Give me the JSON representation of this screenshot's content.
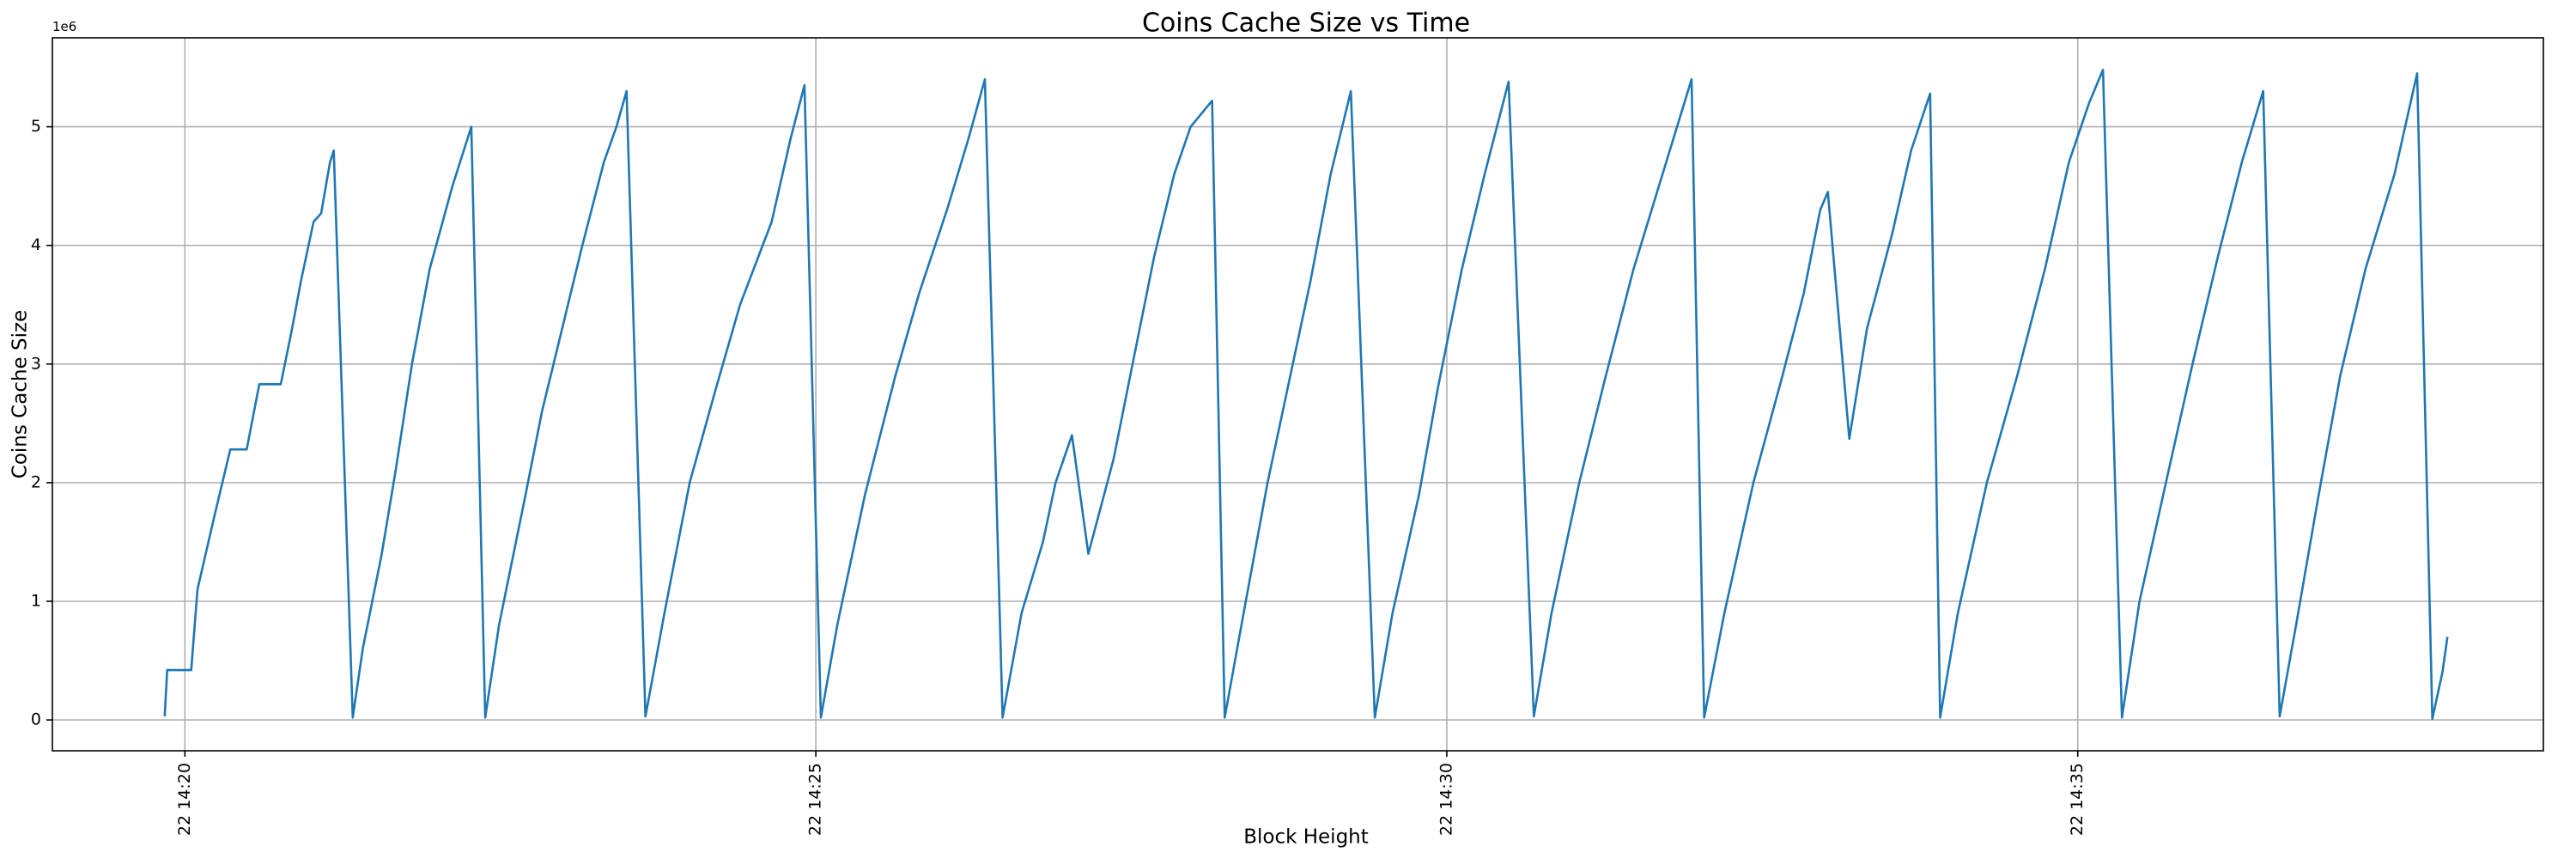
{
  "chart_data": {
    "type": "line",
    "title": "Coins Cache Size vs Time",
    "x_label": "Block Height",
    "y_label": "Coins Cache Size",
    "y_offset_label": "1e6",
    "x": [
      19.84,
      19.86,
      20.05,
      20.1,
      20.23,
      20.36,
      20.49,
      20.59,
      20.76,
      20.85,
      20.92,
      21.02,
      21.08,
      21.15,
      21.18,
      21.33,
      21.41,
      21.56,
      21.67,
      21.8,
      21.94,
      22.12,
      22.27,
      22.38,
      22.49,
      22.7,
      22.83,
      22.99,
      23.15,
      23.32,
      23.42,
      23.5,
      23.65,
      23.8,
      24.0,
      24.21,
      24.4,
      24.65,
      24.8,
      24.91,
      25.04,
      25.17,
      25.39,
      25.63,
      25.82,
      26.04,
      26.21,
      26.34,
      26.48,
      26.63,
      26.8,
      26.9,
      27.03,
      27.16,
      27.36,
      27.51,
      27.68,
      27.84,
      27.97,
      28.14,
      28.24,
      28.39,
      28.58,
      28.74,
      28.92,
      29.08,
      29.24,
      29.43,
      29.57,
      29.78,
      29.93,
      30.12,
      30.3,
      30.49,
      30.69,
      30.83,
      31.05,
      31.26,
      31.48,
      31.71,
      31.94,
      32.04,
      32.2,
      32.43,
      32.66,
      32.83,
      32.96,
      33.02,
      33.19,
      33.33,
      33.53,
      33.68,
      33.83,
      33.91,
      34.05,
      34.28,
      34.52,
      34.74,
      34.93,
      35.09,
      35.2,
      35.35,
      35.49,
      35.72,
      35.91,
      36.11,
      36.3,
      36.47,
      36.6,
      36.73,
      36.91,
      37.08,
      37.28,
      37.51,
      37.69,
      37.81,
      37.89,
      37.93
    ],
    "series": [
      {
        "name": "Coins Cache Size",
        "color": "#1f77b4",
        "values": [
          0.03,
          0.42,
          0.42,
          1.1,
          1.7,
          2.28,
          2.28,
          2.83,
          2.83,
          3.3,
          3.7,
          4.2,
          4.27,
          4.7,
          4.8,
          0.02,
          0.6,
          1.4,
          2.1,
          3.0,
          3.8,
          4.5,
          5.0,
          0.02,
          0.8,
          1.9,
          2.6,
          3.3,
          4.0,
          4.7,
          5.0,
          5.3,
          0.03,
          0.9,
          2.0,
          2.8,
          3.5,
          4.2,
          4.9,
          5.35,
          0.02,
          0.8,
          1.9,
          2.9,
          3.6,
          4.3,
          4.9,
          5.4,
          0.02,
          0.9,
          1.5,
          2.0,
          2.4,
          1.4,
          2.2,
          3.0,
          3.9,
          4.6,
          5.0,
          5.22,
          0.02,
          0.9,
          2.0,
          2.8,
          3.7,
          4.6,
          5.3,
          0.02,
          0.9,
          1.9,
          2.8,
          3.8,
          4.6,
          5.38,
          0.03,
          0.9,
          2.0,
          2.9,
          3.8,
          4.6,
          5.4,
          0.02,
          0.9,
          2.0,
          2.9,
          3.6,
          4.3,
          4.45,
          2.37,
          3.3,
          4.1,
          4.8,
          5.28,
          0.02,
          0.9,
          2.0,
          2.9,
          3.8,
          4.7,
          5.2,
          5.48,
          0.02,
          1.0,
          2.1,
          3.0,
          3.9,
          4.7,
          5.3,
          0.03,
          0.8,
          1.9,
          2.9,
          3.8,
          4.6,
          5.45,
          0.01,
          0.4,
          0.7
        ]
      }
    ],
    "xlim": [
      18.95,
      38.69
    ],
    "ylim": [
      -0.26,
      5.75
    ],
    "xticks": [
      {
        "value": 20,
        "label": "22 14:20"
      },
      {
        "value": 25,
        "label": "22 14:25"
      },
      {
        "value": 30,
        "label": "22 14:30"
      },
      {
        "value": 35,
        "label": "22 14:35"
      }
    ],
    "yticks": [
      0,
      1,
      2,
      3,
      4,
      5
    ],
    "grid": true
  }
}
